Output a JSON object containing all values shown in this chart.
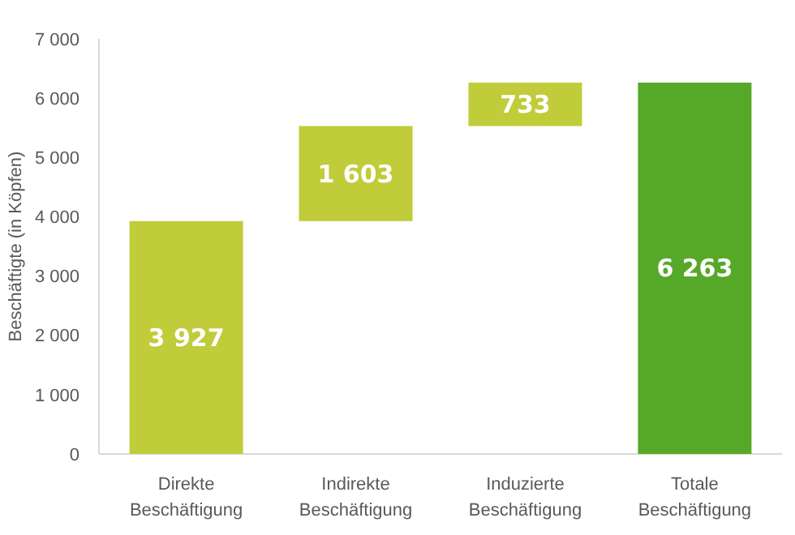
{
  "chart_data": {
    "type": "bar",
    "ylabel": "Beschäftigte (in Köpfen)",
    "categories": [
      "Direkte Beschäftigung",
      "Indirekte Beschäftigung",
      "Induzierte Beschäftigung",
      "Totale Beschäftigung"
    ],
    "values": [
      3927,
      1603,
      733,
      6263
    ],
    "base": [
      0,
      3927,
      5530,
      0
    ],
    "colors": [
      "#c0cc3a",
      "#c0cc3a",
      "#c0cc3a",
      "#56a829"
    ],
    "value_labels": [
      "3 927",
      "1 603",
      "733",
      "6 263"
    ],
    "ylim": [
      0,
      7000
    ],
    "yticks": [
      0,
      {
        "value": 1000,
        "label": "1 000"
      },
      {
        "value": 2000,
        "label": "2 000"
      },
      {
        "value": 3000,
        "label": "3 000"
      },
      {
        "value": 4000,
        "label": "4 000"
      },
      {
        "value": 5000,
        "label": "5 000"
      },
      {
        "value": 6000,
        "label": "6 000"
      },
      {
        "value": 7000,
        "label": "7 000"
      }
    ]
  }
}
